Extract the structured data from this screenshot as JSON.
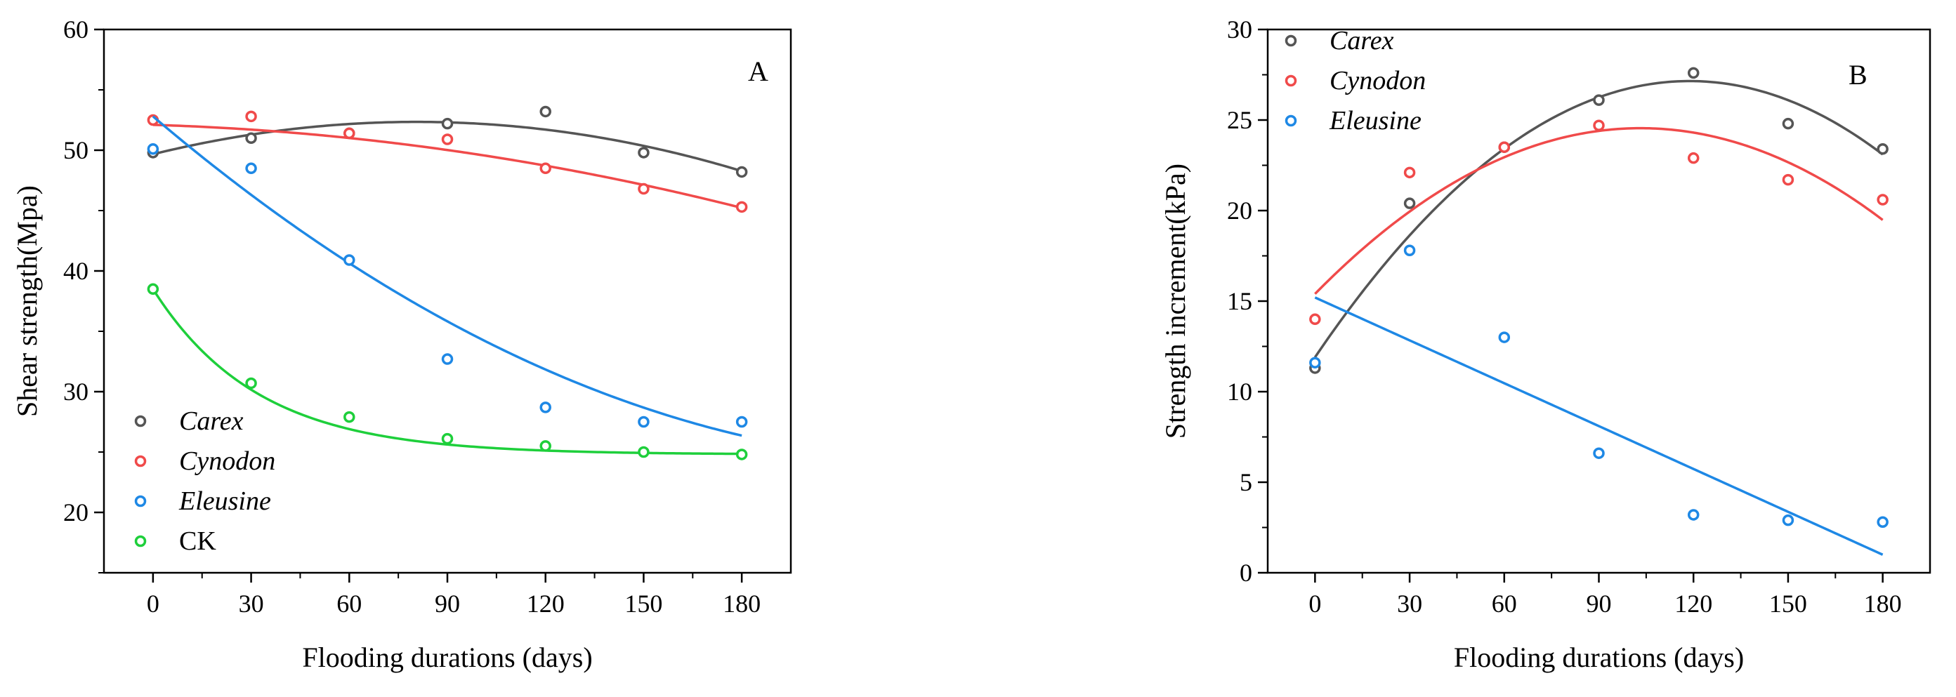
{
  "chart_data": [
    {
      "type": "scatter",
      "panel_label": "A",
      "xlabel": "Flooding durations (days)",
      "ylabel": "Shear strength(Mpa)",
      "xlim": [
        -15,
        195
      ],
      "ylim": [
        15,
        60
      ],
      "x_ticks": [
        0,
        30,
        60,
        90,
        120,
        150,
        180
      ],
      "y_ticks": [
        20,
        30,
        40,
        50,
        60
      ],
      "x_tick_labels": [
        "0",
        "30",
        "60",
        "90",
        "120",
        "150",
        "180"
      ],
      "y_tick_labels": [
        "20",
        "30",
        "40",
        "50",
        "60"
      ],
      "legend_position": "bottom-left",
      "x": [
        0,
        30,
        60,
        90,
        120,
        150,
        180
      ],
      "series": [
        {
          "name": "Carex",
          "italic": true,
          "color": "#555555",
          "values": [
            49.8,
            51.0,
            51.4,
            52.2,
            53.2,
            49.8,
            48.2
          ],
          "fit": {
            "kind": "quadratic",
            "coef": [
              49.67,
              0.0664,
              -0.000412
            ]
          }
        },
        {
          "name": "Cynodon",
          "italic": true,
          "color": "#f04a4a",
          "values": [
            52.5,
            52.8,
            51.4,
            50.9,
            48.5,
            46.8,
            45.3
          ],
          "fit": {
            "kind": "quadratic",
            "coef": [
              52.1,
              -0.00813,
              -0.000167
            ]
          }
        },
        {
          "name": "Eleusine",
          "italic": true,
          "color": "#1e88e5",
          "values": [
            50.1,
            48.5,
            40.9,
            32.7,
            28.7,
            27.5,
            27.5
          ],
          "fit": {
            "kind": "quadratic",
            "coef": [
              52.8,
              -0.2304,
              0.000464
            ]
          }
        },
        {
          "name": "CK",
          "italic": false,
          "color": "#1ecf3b",
          "values": [
            38.5,
            30.7,
            27.9,
            26.1,
            25.5,
            25.0,
            24.8
          ],
          "fit": {
            "kind": "exponential",
            "coef": [
              24.8,
              13.7,
              32.0
            ]
          }
        }
      ]
    },
    {
      "type": "scatter",
      "panel_label": "B",
      "xlabel": "Flooding durations (days)",
      "ylabel": "Strength increment(kPa)",
      "xlim": [
        -15,
        195
      ],
      "ylim": [
        0,
        30
      ],
      "x_ticks": [
        0,
        30,
        60,
        90,
        120,
        150,
        180
      ],
      "y_ticks": [
        0,
        5,
        10,
        15,
        20,
        25,
        30
      ],
      "x_tick_labels": [
        "0",
        "30",
        "60",
        "90",
        "120",
        "150",
        "180"
      ],
      "y_tick_labels": [
        "0",
        "5",
        "10",
        "15",
        "20",
        "25",
        "30"
      ],
      "legend_position": "top-left",
      "x": [
        0,
        30,
        60,
        90,
        120,
        150,
        180
      ],
      "series": [
        {
          "name": "Carex",
          "italic": true,
          "color": "#555555",
          "values": [
            11.3,
            20.4,
            23.5,
            26.1,
            27.6,
            24.8,
            23.4
          ],
          "fit": {
            "kind": "quadratic",
            "coef": [
              11.9,
              0.2568,
              -0.001081
            ]
          }
        },
        {
          "name": "Cynodon",
          "italic": true,
          "color": "#f04a4a",
          "values": [
            14.0,
            22.1,
            23.5,
            24.7,
            22.9,
            21.7,
            20.6
          ],
          "fit": {
            "kind": "quadratic",
            "coef": [
              15.4,
              0.1773,
              -0.000859
            ]
          }
        },
        {
          "name": "Eleusine",
          "italic": true,
          "color": "#1e88e5",
          "values": [
            11.6,
            17.8,
            13.0,
            6.6,
            3.2,
            2.9,
            2.8
          ],
          "fit": {
            "kind": "linear",
            "coef": [
              15.2,
              -0.0789
            ]
          }
        }
      ]
    }
  ]
}
